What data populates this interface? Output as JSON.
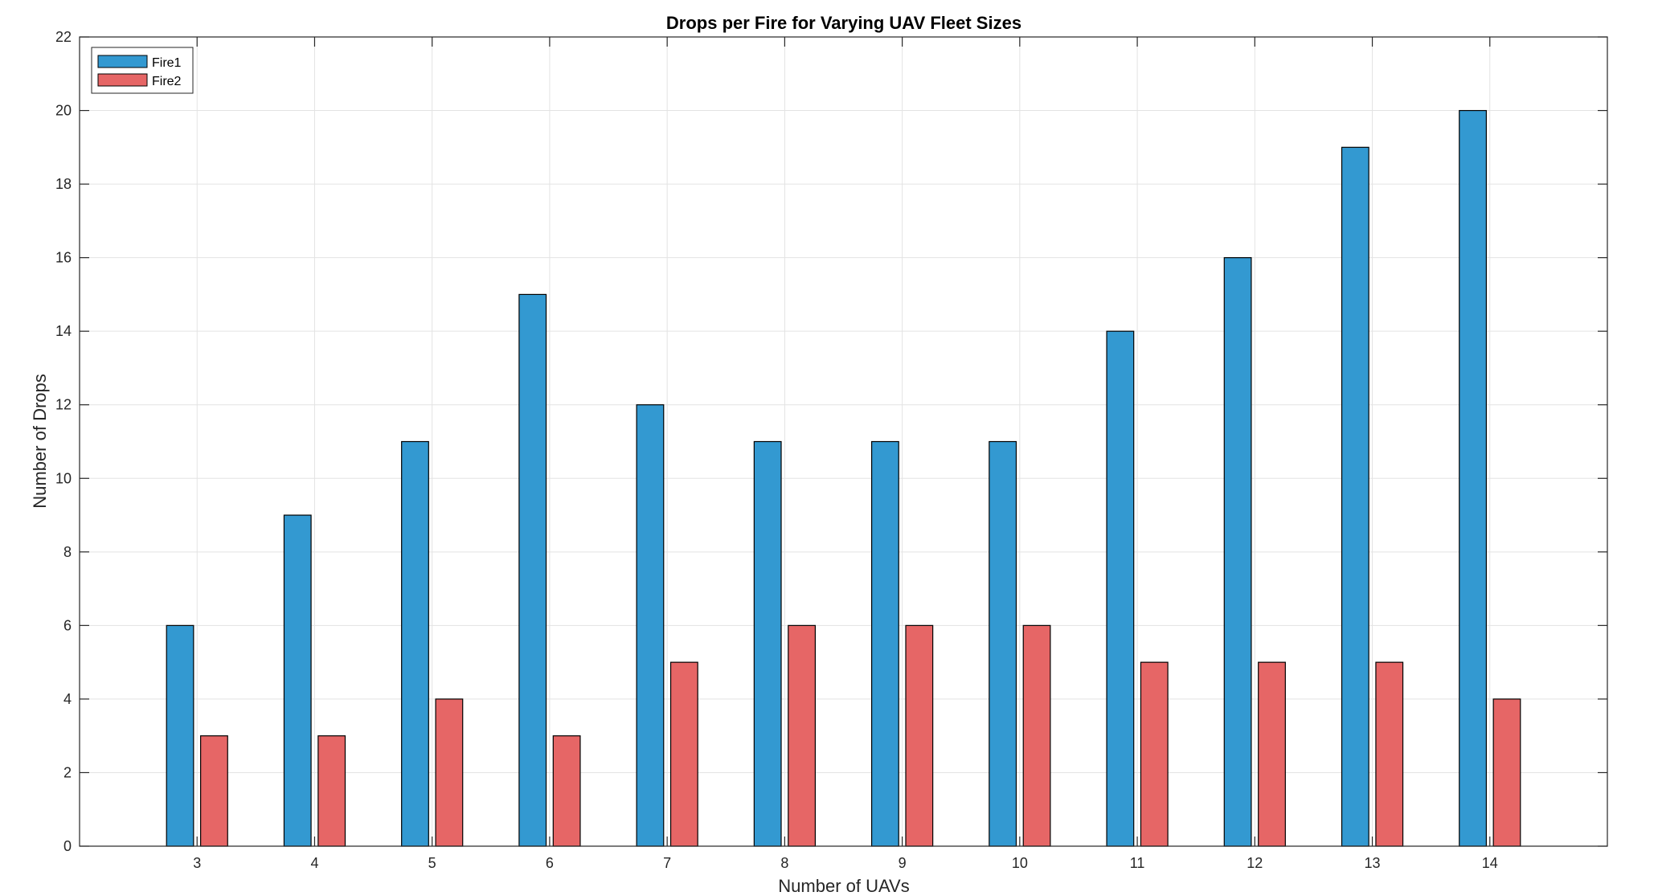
{
  "chart_data": {
    "type": "bar",
    "title": "Drops per Fire for Varying UAV Fleet Sizes",
    "xlabel": "Number of UAVs",
    "ylabel": "Number of Drops",
    "categories": [
      "3",
      "4",
      "5",
      "6",
      "7",
      "8",
      "9",
      "10",
      "11",
      "12",
      "13",
      "14"
    ],
    "series": [
      {
        "name": "Fire1",
        "color": "#3399D1",
        "values": [
          6,
          9,
          11,
          15,
          12,
          11,
          11,
          11,
          14,
          16,
          19,
          20
        ]
      },
      {
        "name": "Fire2",
        "color": "#E66666",
        "values": [
          3,
          3,
          4,
          3,
          5,
          6,
          6,
          6,
          5,
          5,
          5,
          4
        ]
      }
    ],
    "ylim": [
      0,
      22
    ],
    "yticks": [
      0,
      2,
      4,
      6,
      8,
      10,
      12,
      14,
      16,
      18,
      20,
      22
    ],
    "xlim": [
      2,
      15
    ],
    "grid": true,
    "legend_position": "top-left"
  }
}
